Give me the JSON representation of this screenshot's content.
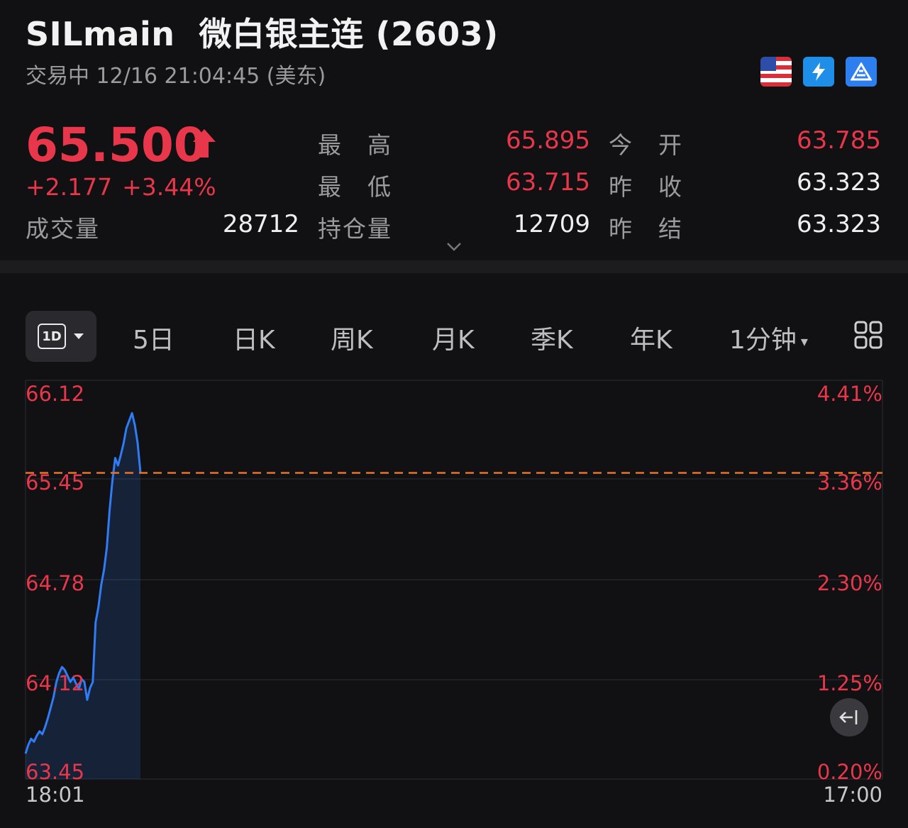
{
  "header": {
    "symbol": "SILmain",
    "name": "微白银主连 (2603)",
    "status": "交易中 12/16 21:04:45 (美东)",
    "badges": [
      "us-flag-icon",
      "lightning-level1-icon",
      "depth-icon"
    ]
  },
  "quote": {
    "price": "65.500",
    "change": "+2.177",
    "change_pct": "+3.44%",
    "direction": "up"
  },
  "stats": {
    "volume_label": "成交量",
    "volume": "28712",
    "high_label": "最　高",
    "high": "65.895",
    "low_label": "最　低",
    "low": "63.715",
    "open_interest_label": "持仓量",
    "open_interest": "12709",
    "open_label": "今　开",
    "open": "63.785",
    "prev_close_label": "昨　收",
    "prev_close": "63.323",
    "prev_settle_label": "昨　结",
    "prev_settle": "63.323"
  },
  "toolbar": {
    "selected": "1D",
    "tabs": [
      "5日",
      "日K",
      "周K",
      "月K",
      "季K",
      "年K"
    ],
    "interval": "1分钟"
  },
  "colors": {
    "up": "#e8364a",
    "line": "#2f7cf6",
    "ref_line": "#e8722a",
    "background": "#111113"
  },
  "chart_data": {
    "type": "line",
    "y_labels": [
      "66.12",
      "65.45",
      "64.78",
      "64.12",
      "63.45"
    ],
    "y_pct_labels": [
      "4.41%",
      "3.36%",
      "2.30%",
      "1.25%",
      "0.20%"
    ],
    "x_labels": [
      "18:01",
      "17:00"
    ],
    "ylim": [
      63.45,
      66.12
    ],
    "reference_line": 65.5,
    "series": [
      {
        "values": [
          63.62,
          63.68,
          63.72,
          63.7,
          63.74,
          63.77,
          63.75,
          63.8,
          63.86,
          63.93,
          64.0,
          64.1,
          64.16,
          64.2,
          64.18,
          64.14,
          64.1,
          64.13,
          64.09,
          64.05,
          64.12,
          64.1,
          63.98,
          64.06,
          64.1,
          64.5,
          64.6,
          64.75,
          64.85,
          65.0,
          65.25,
          65.45,
          65.6,
          65.55,
          65.62,
          65.7,
          65.8,
          65.85,
          65.9,
          65.82,
          65.7,
          65.5
        ]
      }
    ]
  }
}
